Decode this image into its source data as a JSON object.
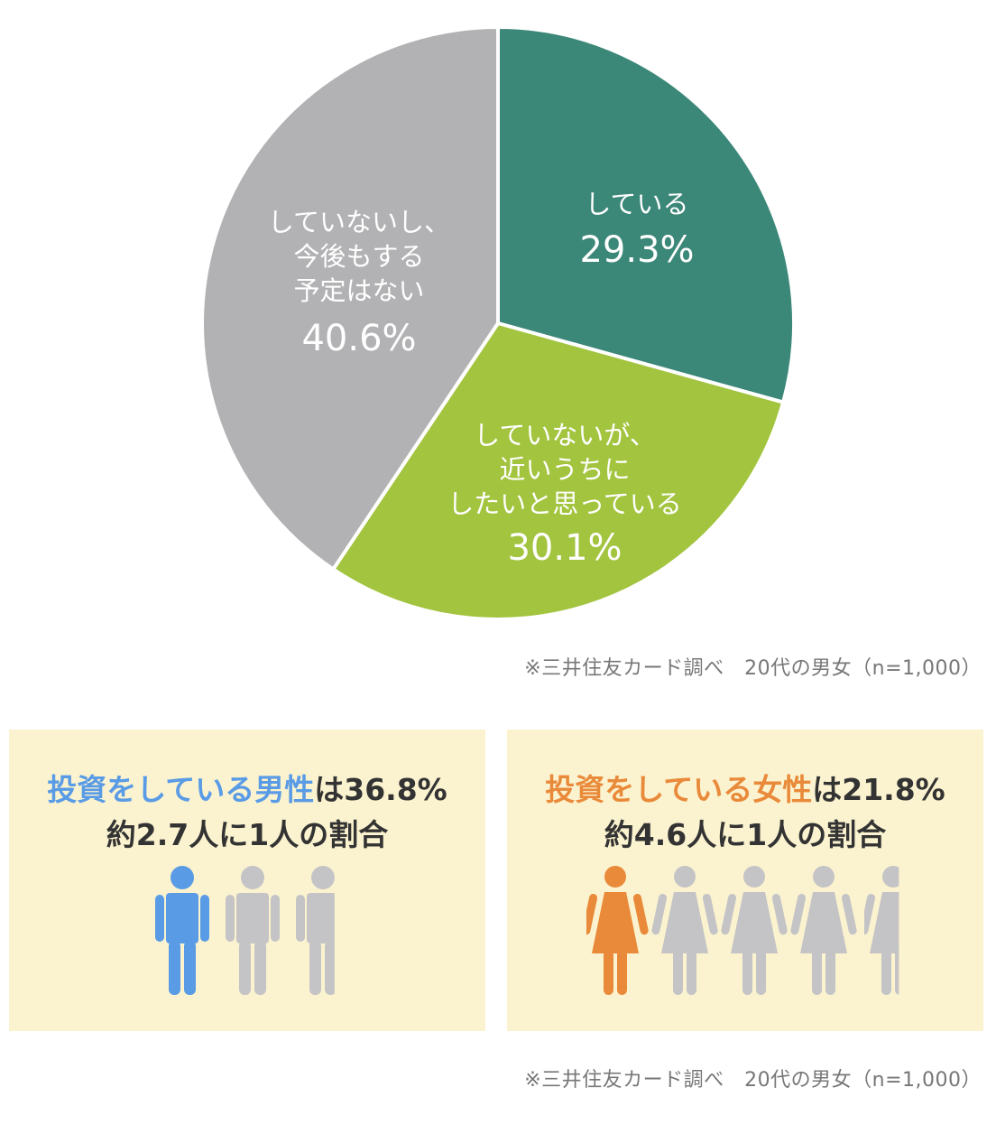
{
  "chart_data": {
    "type": "pie",
    "slices": [
      {
        "label": "している",
        "value": 29.3,
        "value_text": "29.3%",
        "color": "#3b8778"
      },
      {
        "label": "していないが、\n近いうちに\nしたいと思っている",
        "value": 30.1,
        "value_text": "30.1%",
        "color": "#a3c43f"
      },
      {
        "label": "していないし、\n今後もする\n予定はない",
        "value": 40.6,
        "value_text": "40.6%",
        "color": "#b2b2b4"
      }
    ]
  },
  "source_top": "※三井住友カード調べ　20代の男女（n=1,000）",
  "source_bottom": "※三井住友カード調べ　20代の男女（n=1,000）",
  "male": {
    "highlight": "投資をしている男性",
    "rest": "は36.8%",
    "sub": "約2.7人に1人の割合",
    "highlight_color": "#5a9be6",
    "ratio": 2.7
  },
  "female": {
    "highlight": "投資をしている女性",
    "rest": "は21.8%",
    "sub": "約4.6人に1人の割合",
    "highlight_color": "#e98a3a",
    "ratio": 4.6
  },
  "icons": {
    "male": "male-person-icon",
    "female": "female-person-icon",
    "inactive_color": "#c4c4c6"
  }
}
